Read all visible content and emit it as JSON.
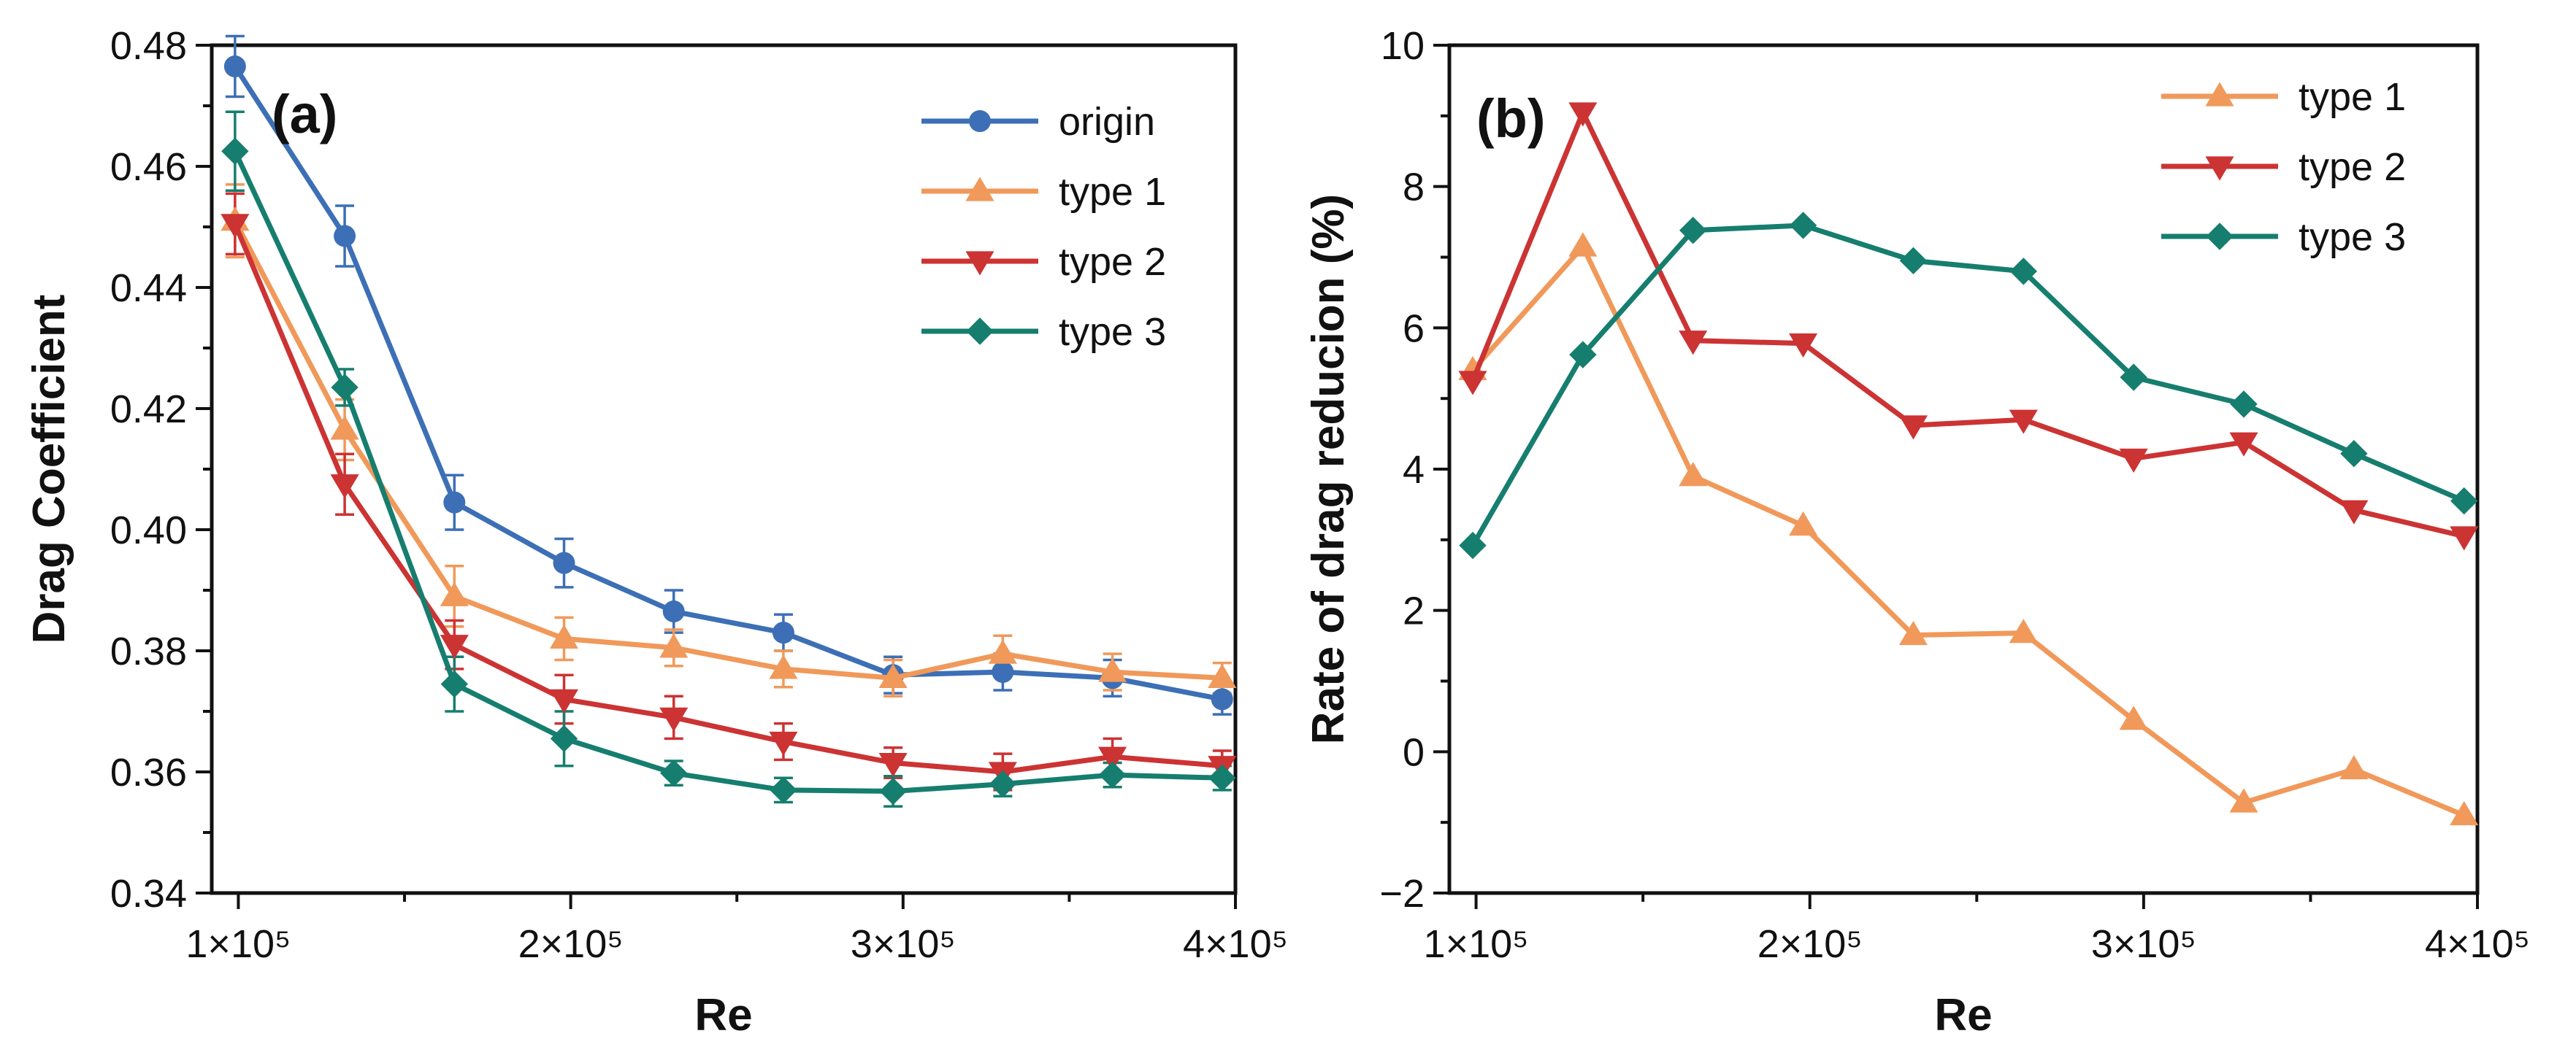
{
  "chart_data": [
    {
      "type": "line",
      "panel_label": "(a)",
      "xlabel": "Re",
      "ylabel": "Drag Coefficient",
      "xlim": [
        92000,
        400000
      ],
      "ylim": [
        0.34,
        0.48
      ],
      "x": [
        99000,
        132000,
        165000,
        198000,
        231000,
        264000,
        297000,
        330000,
        363000,
        396000
      ],
      "x_ticks": [
        {
          "value": 100000,
          "label": "1×10⁵"
        },
        {
          "value": 200000,
          "label": "2×10⁵"
        },
        {
          "value": 300000,
          "label": "3×10⁵"
        },
        {
          "value": 400000,
          "label": "4×10⁵"
        }
      ],
      "y_ticks": [
        {
          "value": 0.34,
          "label": "0.34"
        },
        {
          "value": 0.36,
          "label": "0.36"
        },
        {
          "value": 0.38,
          "label": "0.38"
        },
        {
          "value": 0.4,
          "label": "0.40"
        },
        {
          "value": 0.42,
          "label": "0.42"
        },
        {
          "value": 0.44,
          "label": "0.44"
        },
        {
          "value": 0.46,
          "label": "0.46"
        },
        {
          "value": 0.48,
          "label": "0.48"
        }
      ],
      "legend_position": "top-right",
      "series": [
        {
          "name": "origin",
          "color": "#3c6fb6",
          "marker": "circle",
          "values": [
            0.4765,
            0.4485,
            0.4045,
            0.3945,
            0.3865,
            0.383,
            0.376,
            0.3765,
            0.3755,
            0.372
          ],
          "errors": [
            0.005,
            0.005,
            0.0045,
            0.004,
            0.0035,
            0.003,
            0.003,
            0.003,
            0.003,
            0.0025
          ]
        },
        {
          "name": "type 1",
          "color": "#f0995a",
          "marker": "triangle-up",
          "values": [
            0.451,
            0.4165,
            0.389,
            0.382,
            0.3805,
            0.377,
            0.3755,
            0.3795,
            0.3765,
            0.3755
          ],
          "errors": [
            0.006,
            0.005,
            0.005,
            0.0035,
            0.003,
            0.003,
            0.003,
            0.003,
            0.003,
            0.0025
          ]
        },
        {
          "name": "type 2",
          "color": "#cc3333",
          "marker": "triangle-down",
          "values": [
            0.4505,
            0.4075,
            0.381,
            0.372,
            0.369,
            0.365,
            0.3615,
            0.36,
            0.3625,
            0.361
          ],
          "errors": [
            0.005,
            0.005,
            0.004,
            0.004,
            0.0035,
            0.003,
            0.0025,
            0.003,
            0.003,
            0.0025
          ]
        },
        {
          "name": "type 3",
          "color": "#167e6e",
          "marker": "diamond",
          "values": [
            0.4625,
            0.4235,
            0.3745,
            0.3655,
            0.3598,
            0.357,
            0.3568,
            0.358,
            0.3595,
            0.359
          ],
          "errors": [
            0.0065,
            0.003,
            0.0045,
            0.0045,
            0.002,
            0.002,
            0.0025,
            0.002,
            0.002,
            0.002
          ]
        }
      ]
    },
    {
      "type": "line",
      "panel_label": "(b)",
      "xlabel": "Re",
      "ylabel": "Rate of drag reducion (%)",
      "xlim": [
        92000,
        400000
      ],
      "ylim": [
        -2,
        10
      ],
      "x": [
        99000,
        132000,
        165000,
        198000,
        231000,
        264000,
        297000,
        330000,
        363000,
        396000
      ],
      "x_ticks": [
        {
          "value": 100000,
          "label": "1×10⁵"
        },
        {
          "value": 200000,
          "label": "2×10⁵"
        },
        {
          "value": 300000,
          "label": "3×10⁵"
        },
        {
          "value": 400000,
          "label": "4×10⁵"
        }
      ],
      "y_ticks": [
        {
          "value": -2,
          "label": "−2"
        },
        {
          "value": 0,
          "label": "0"
        },
        {
          "value": 2,
          "label": "2"
        },
        {
          "value": 4,
          "label": "4"
        },
        {
          "value": 6,
          "label": "6"
        },
        {
          "value": 8,
          "label": "8"
        },
        {
          "value": 10,
          "label": "10"
        }
      ],
      "legend_position": "top-right",
      "series": [
        {
          "name": "type 1",
          "color": "#f0995a",
          "marker": "triangle-up",
          "values": [
            5.4,
            7.15,
            3.9,
            3.2,
            1.65,
            1.68,
            0.45,
            -0.72,
            -0.25,
            -0.9
          ]
        },
        {
          "name": "type 2",
          "color": "#cc3333",
          "marker": "triangle-down",
          "values": [
            5.25,
            9.05,
            5.82,
            5.78,
            4.62,
            4.7,
            4.15,
            4.38,
            3.42,
            3.05
          ]
        },
        {
          "name": "type 3",
          "color": "#167e6e",
          "marker": "diamond",
          "values": [
            2.92,
            5.62,
            7.38,
            7.45,
            6.95,
            6.8,
            5.3,
            4.92,
            4.22,
            3.55
          ]
        }
      ]
    }
  ]
}
